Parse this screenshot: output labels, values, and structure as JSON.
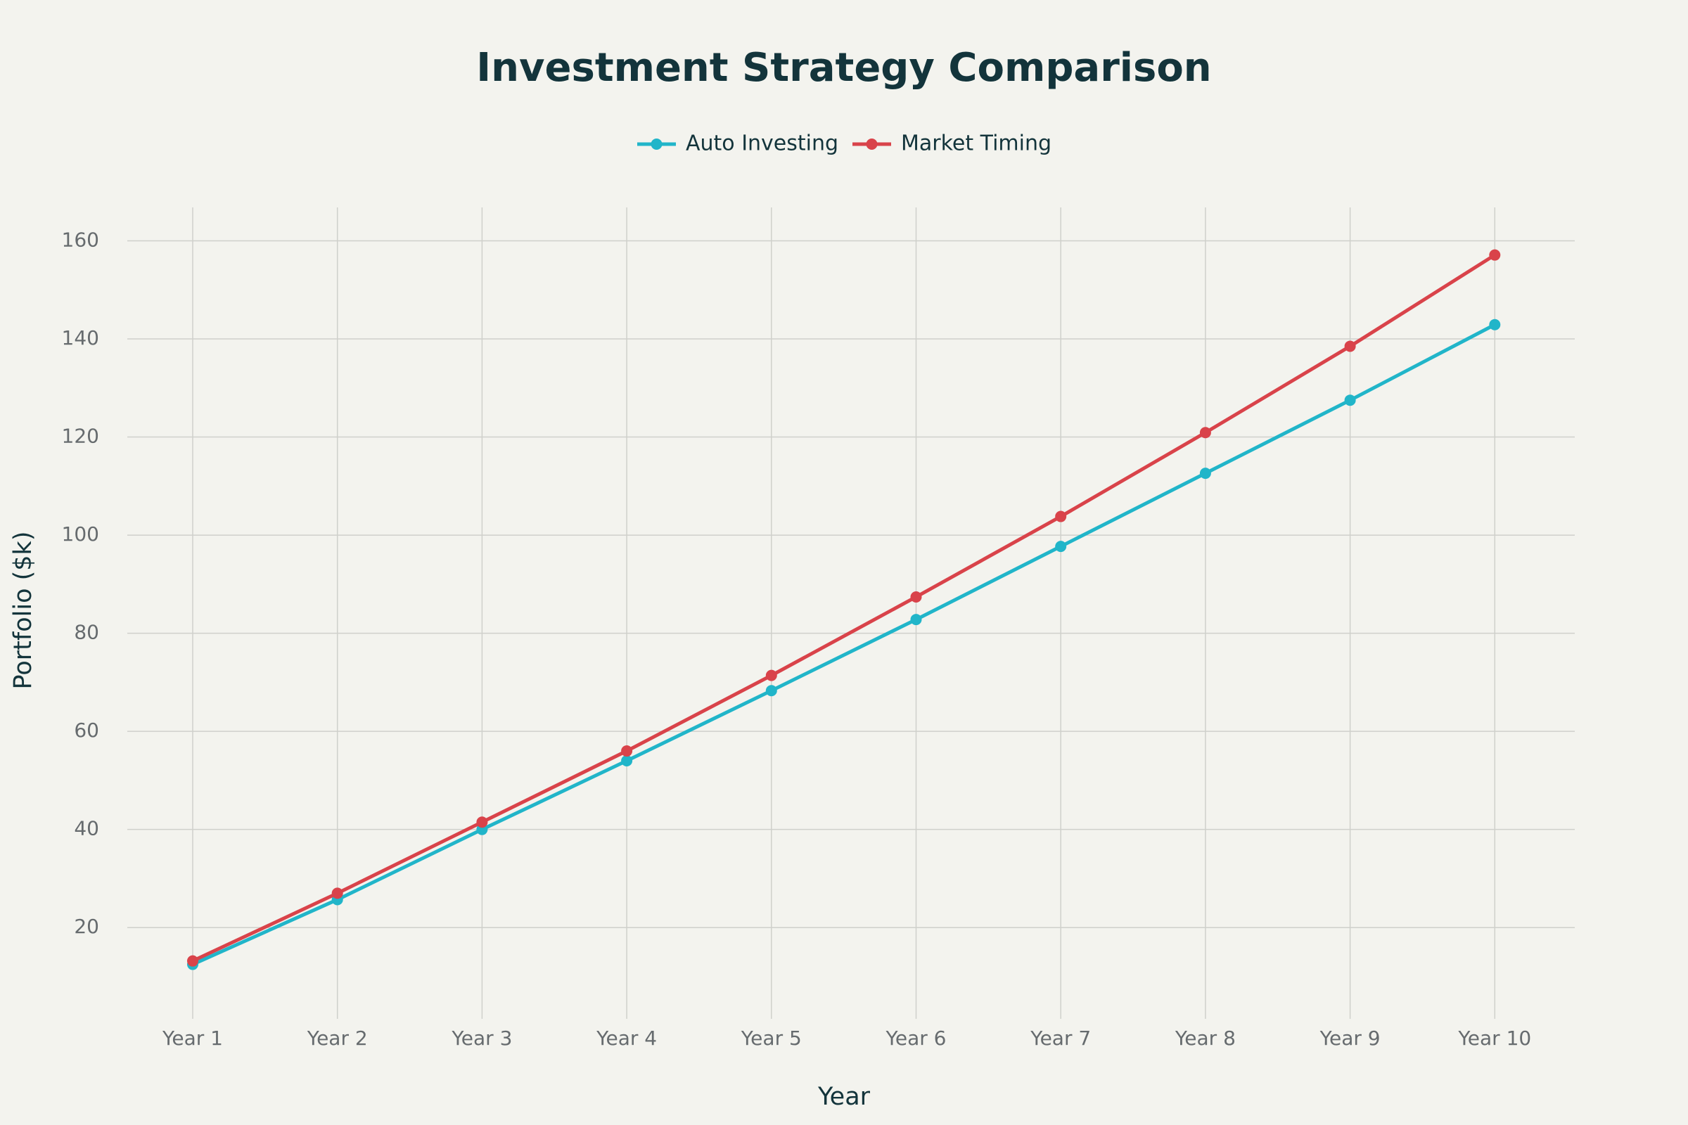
{
  "chart_data": {
    "type": "line",
    "title": "Investment Strategy Comparison",
    "x_label": "Year",
    "y_label": "Portfolio ($k)",
    "categories": [
      "Year 1",
      "Year 2",
      "Year 3",
      "Year 4",
      "Year 5",
      "Year 6",
      "Year 7",
      "Year 8",
      "Year 9",
      "Year 10"
    ],
    "series": [
      {
        "name": "Auto Investing",
        "color": "#21b5c9",
        "values": [
          12.5,
          25.7,
          40,
          54,
          68.3,
          82.8,
          97.7,
          112.6,
          127.5,
          142.9
        ]
      },
      {
        "name": "Market Timing",
        "color": "#d9434a",
        "values": [
          13.2,
          27,
          41.5,
          56,
          71.4,
          87.4,
          103.8,
          120.9,
          138.5,
          157.1
        ]
      }
    ],
    "ylim": [
      1.4,
      166.8
    ],
    "yticks": [
      20,
      40,
      60,
      80,
      100,
      120,
      140,
      160
    ],
    "grid": true,
    "legend": "top"
  }
}
